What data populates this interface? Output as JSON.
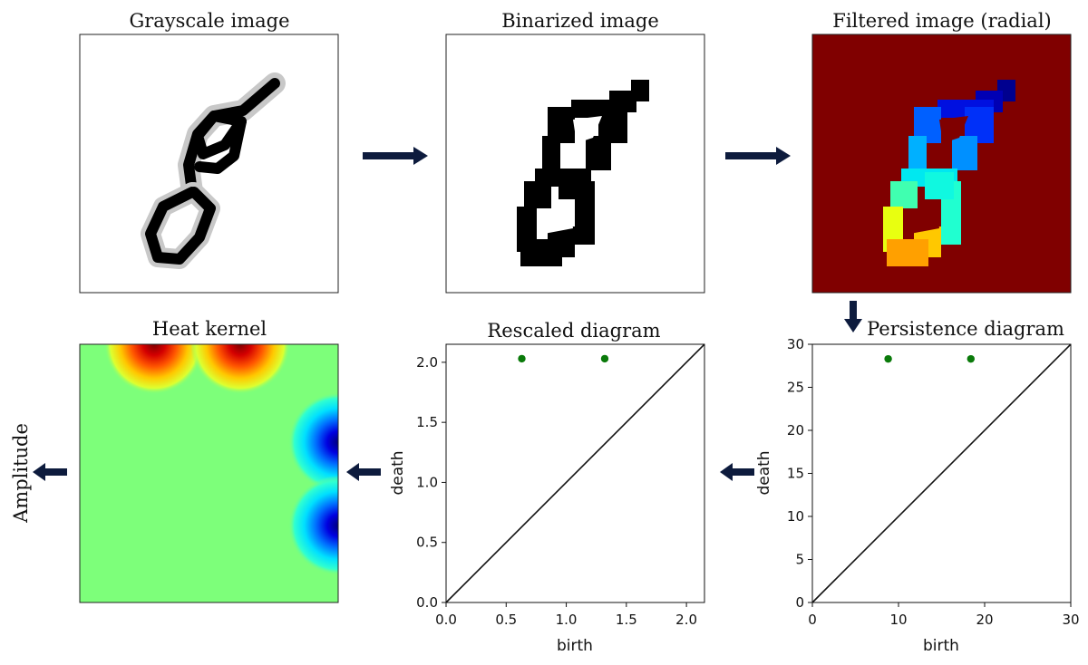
{
  "panels": {
    "grayscale": {
      "title": "Grayscale image"
    },
    "binarized": {
      "title": "Binarized image"
    },
    "filtered": {
      "title": "Filtered image (radial)"
    },
    "heat_kernel": {
      "title": "Heat kernel"
    },
    "rescaled": {
      "title": "Rescaled diagram"
    },
    "persistence": {
      "title": "Persistence diagram"
    }
  },
  "output_label": "Amplitude",
  "colors": {
    "arrow": "#0d1b3d",
    "points": "#0a7a0a",
    "diagonal": "#111111",
    "filtered_background": "#800000",
    "heat_background": "#7dff7a"
  },
  "chart_data": [
    {
      "type": "scatter",
      "title": "Rescaled diagram",
      "xlabel": "birth",
      "ylabel": "death",
      "xlim": [
        0,
        2.15
      ],
      "ylim": [
        0,
        2.15
      ],
      "xticks": [
        "0.0",
        "0.5",
        "1.0",
        "1.5",
        "2.0"
      ],
      "yticks": [
        "0.0",
        "0.5",
        "1.0",
        "1.5",
        "2.0"
      ],
      "points": [
        {
          "x": 0.63,
          "y": 2.03
        },
        {
          "x": 1.32,
          "y": 2.03
        }
      ],
      "diagonal": true,
      "grid": false
    },
    {
      "type": "scatter",
      "title": "Persistence diagram",
      "xlabel": "birth",
      "ylabel": "death",
      "xlim": [
        0,
        30
      ],
      "ylim": [
        0,
        30
      ],
      "xticks": [
        "0",
        "10",
        "20",
        "30"
      ],
      "yticks": [
        "0",
        "5",
        "10",
        "15",
        "20",
        "25",
        "30"
      ],
      "points": [
        {
          "x": 8.8,
          "y": 28.3
        },
        {
          "x": 18.4,
          "y": 28.3
        }
      ],
      "diagonal": true,
      "grid": false
    }
  ]
}
